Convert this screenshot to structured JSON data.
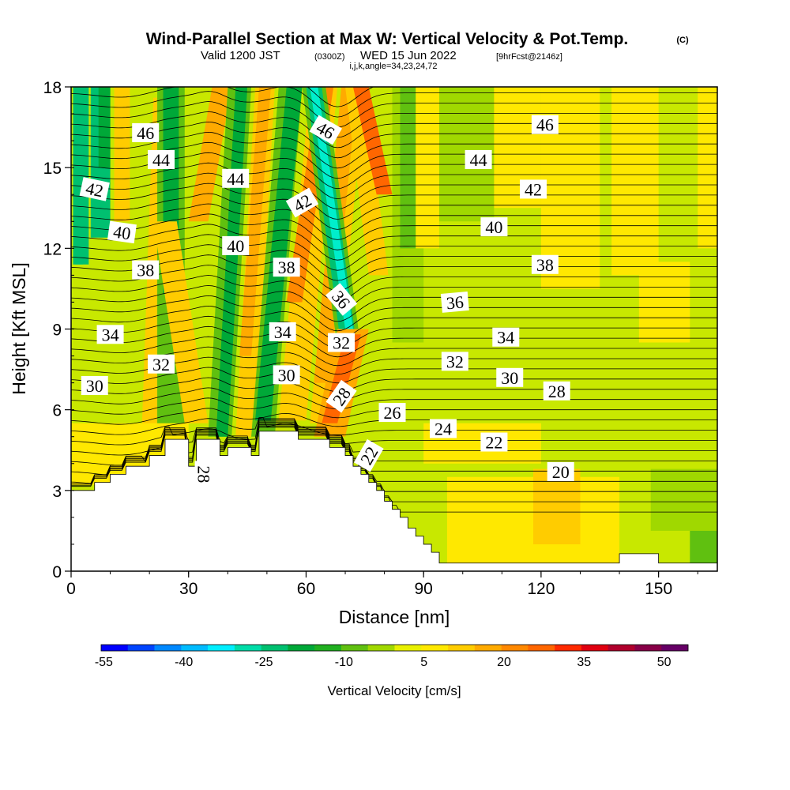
{
  "header": {
    "title": "Wind-Parallel Section at Max W: Vertical Velocity & Pot.Temp.",
    "copyright": "(C)",
    "valid_prefix": "Valid 1200 JST",
    "valid_utc": "(0300Z)",
    "valid_date": "WED 15 Jun 2022",
    "forecast": "[9hrFcst@2146z]",
    "indices": "i,j,k,angle=34,23,24,72"
  },
  "chart_data": {
    "type": "heatmap",
    "xlabel": "Distance [nm]",
    "ylabel": "Height [Kft MSL]",
    "xlim": [
      0,
      165
    ],
    "ylim": [
      0,
      18
    ],
    "x_ticks": [
      0,
      30,
      60,
      90,
      120,
      150
    ],
    "y_ticks": [
      0,
      3,
      6,
      9,
      12,
      15,
      18
    ],
    "terrain_kft": [
      [
        0,
        3.0
      ],
      [
        6,
        3.0
      ],
      [
        6,
        3.3
      ],
      [
        10,
        3.3
      ],
      [
        10,
        3.6
      ],
      [
        14,
        3.6
      ],
      [
        14,
        3.9
      ],
      [
        20,
        3.9
      ],
      [
        20,
        4.3
      ],
      [
        24,
        4.3
      ],
      [
        24,
        4.9
      ],
      [
        30,
        4.9
      ],
      [
        30,
        3.9
      ],
      [
        32,
        3.9
      ],
      [
        32,
        4.9
      ],
      [
        38,
        4.9
      ],
      [
        38,
        4.3
      ],
      [
        40,
        4.3
      ],
      [
        40,
        4.6
      ],
      [
        46,
        4.6
      ],
      [
        46,
        4.3
      ],
      [
        48,
        4.3
      ],
      [
        48,
        5.2
      ],
      [
        58,
        5.2
      ],
      [
        58,
        4.9
      ],
      [
        66,
        4.9
      ],
      [
        66,
        4.6
      ],
      [
        70,
        4.6
      ],
      [
        70,
        4.3
      ],
      [
        72,
        4.3
      ],
      [
        72,
        3.9
      ],
      [
        74,
        3.9
      ],
      [
        74,
        3.6
      ],
      [
        76,
        3.6
      ],
      [
        76,
        3.3
      ],
      [
        78,
        3.3
      ],
      [
        78,
        3.0
      ],
      [
        80,
        3.0
      ],
      [
        80,
        2.6
      ],
      [
        82,
        2.6
      ],
      [
        82,
        2.3
      ],
      [
        84,
        2.3
      ],
      [
        84,
        2.0
      ],
      [
        86,
        2.0
      ],
      [
        86,
        1.6
      ],
      [
        88,
        1.6
      ],
      [
        88,
        1.3
      ],
      [
        90,
        1.3
      ],
      [
        90,
        1.0
      ],
      [
        92,
        1.0
      ],
      [
        92,
        0.7
      ],
      [
        94,
        0.7
      ],
      [
        94,
        0.3
      ],
      [
        140,
        0.3
      ],
      [
        140,
        0.65
      ],
      [
        150,
        0.65
      ],
      [
        150,
        0.3
      ],
      [
        165,
        0.3
      ]
    ],
    "theta_levels_C": [
      20,
      22,
      24,
      26,
      28,
      30,
      32,
      34,
      36,
      38,
      40,
      42,
      44,
      46
    ],
    "theta_labels": [
      {
        "text": "46",
        "x": 19,
        "y": 16.3,
        "rot": 0
      },
      {
        "text": "44",
        "x": 23,
        "y": 15.3,
        "rot": 0
      },
      {
        "text": "42",
        "x": 6,
        "y": 14.2,
        "rot": 12
      },
      {
        "text": "40",
        "x": 13,
        "y": 12.6,
        "rot": 8
      },
      {
        "text": "38",
        "x": 19,
        "y": 11.2,
        "rot": 0
      },
      {
        "text": "34",
        "x": 10,
        "y": 8.8,
        "rot": 0
      },
      {
        "text": "32",
        "x": 23,
        "y": 7.7,
        "rot": 0
      },
      {
        "text": "30",
        "x": 6,
        "y": 6.9,
        "rot": 0
      },
      {
        "text": "44",
        "x": 42,
        "y": 14.6,
        "rot": 0
      },
      {
        "text": "40",
        "x": 42,
        "y": 12.1,
        "rot": 0
      },
      {
        "text": "38",
        "x": 55,
        "y": 11.3,
        "rot": 0
      },
      {
        "text": "34",
        "x": 54,
        "y": 8.9,
        "rot": 0
      },
      {
        "text": "30",
        "x": 55,
        "y": 7.3,
        "rot": 0
      },
      {
        "text": "28",
        "x": 34,
        "y": 3.6,
        "rot": 90
      },
      {
        "text": "46",
        "x": 65,
        "y": 16.4,
        "rot": 30
      },
      {
        "text": "42",
        "x": 59,
        "y": 13.7,
        "rot": -30
      },
      {
        "text": "36",
        "x": 69,
        "y": 10.1,
        "rot": 50
      },
      {
        "text": "32",
        "x": 69,
        "y": 8.5,
        "rot": 0
      },
      {
        "text": "28",
        "x": 69,
        "y": 6.5,
        "rot": -55
      },
      {
        "text": "22",
        "x": 76,
        "y": 4.3,
        "rot": -60
      },
      {
        "text": "26",
        "x": 82,
        "y": 5.9,
        "rot": 0
      },
      {
        "text": "24",
        "x": 95,
        "y": 5.3,
        "rot": 0
      },
      {
        "text": "22",
        "x": 108,
        "y": 4.8,
        "rot": 0
      },
      {
        "text": "20",
        "x": 125,
        "y": 3.7,
        "rot": 0
      },
      {
        "text": "28",
        "x": 124,
        "y": 6.7,
        "rot": 0
      },
      {
        "text": "30",
        "x": 112,
        "y": 7.2,
        "rot": 0
      },
      {
        "text": "32",
        "x": 98,
        "y": 7.8,
        "rot": 0
      },
      {
        "text": "34",
        "x": 111,
        "y": 8.7,
        "rot": 0
      },
      {
        "text": "36",
        "x": 98,
        "y": 10.0,
        "rot": -5
      },
      {
        "text": "38",
        "x": 121,
        "y": 11.4,
        "rot": 0
      },
      {
        "text": "40",
        "x": 108,
        "y": 12.8,
        "rot": 0
      },
      {
        "text": "42",
        "x": 118,
        "y": 14.2,
        "rot": 0
      },
      {
        "text": "44",
        "x": 104,
        "y": 15.3,
        "rot": 0
      },
      {
        "text": "46",
        "x": 121,
        "y": 16.6,
        "rot": 0
      }
    ],
    "colorbar": {
      "title": "Vertical Velocity [cm/s]",
      "tick_labels": [
        "-55",
        "-40",
        "-25",
        "-10",
        "5",
        "20",
        "35",
        "50"
      ],
      "colors": [
        "#0000ff",
        "#0044ff",
        "#0088ff",
        "#00bbff",
        "#00eeff",
        "#00dca8",
        "#00c070",
        "#00a838",
        "#20b020",
        "#60c010",
        "#a0d800",
        "#e8f000",
        "#ffe800",
        "#ffcc00",
        "#ffaa00",
        "#ff8800",
        "#ff6600",
        "#ff2a00",
        "#e00010",
        "#b0002c",
        "#880048",
        "#660066"
      ]
    },
    "bands": [
      {
        "x0": 1,
        "x1": 3,
        "lean": 0,
        "ybot": 11.4,
        "ytop": 18,
        "color": "#00eecc"
      },
      {
        "x0": 0.5,
        "x1": 4.5,
        "lean": 0,
        "ybot": 11.4,
        "ytop": 18,
        "color": "#00c070"
      },
      {
        "x0": 5,
        "x1": 10,
        "lean": 0,
        "ybot": 12.4,
        "ytop": 18,
        "color": "#00c070"
      },
      {
        "x0": 7,
        "x1": 10,
        "lean": 0,
        "ybot": 15.0,
        "ytop": 18,
        "color": "#00a838"
      },
      {
        "x0": 11,
        "x1": 15,
        "lean": 0,
        "ybot": 13.0,
        "ytop": 18,
        "color": "#ffcc00"
      },
      {
        "x0": 18,
        "x1": 23,
        "lean": 3,
        "ybot": 5.0,
        "ytop": 17.6,
        "color": "#ffcc00"
      },
      {
        "x0": 22,
        "x1": 29,
        "lean": 0,
        "ybot": 5.0,
        "ytop": 18,
        "color": "#60c010"
      },
      {
        "x0": 23.5,
        "x1": 27.5,
        "lean": 0,
        "ybot": 10.3,
        "ytop": 18,
        "color": "#00a838"
      },
      {
        "x0": 29,
        "x1": 35,
        "lean": -8,
        "ybot": 5.5,
        "ytop": 13.0,
        "color": "#ffcc00"
      },
      {
        "x0": 30,
        "x1": 35,
        "lean": 6,
        "ybot": 13.0,
        "ytop": 18,
        "color": "#ffaa00"
      },
      {
        "x0": 35,
        "x1": 41,
        "lean": 5,
        "ybot": 5.0,
        "ytop": 18,
        "color": "#60c010"
      },
      {
        "x0": 37,
        "x1": 40,
        "lean": 5,
        "ybot": 5.0,
        "ytop": 18,
        "color": "#00a838"
      },
      {
        "x0": 42,
        "x1": 47,
        "lean": 5,
        "ybot": 5.0,
        "ytop": 18,
        "color": "#ffcc00"
      },
      {
        "x0": 43,
        "x1": 46,
        "lean": 5,
        "ybot": 8.0,
        "ytop": 18,
        "color": "#ffaa00"
      },
      {
        "x0": 46,
        "x1": 52,
        "lean": 7,
        "ybot": 5.0,
        "ytop": 18,
        "color": "#60c010"
      },
      {
        "x0": 47,
        "x1": 51,
        "lean": 8,
        "ybot": 5.6,
        "ytop": 18,
        "color": "#00a838"
      },
      {
        "x0": 53,
        "x1": 60,
        "lean": 8,
        "ybot": 5.6,
        "ytop": 18,
        "color": "#ffcc00"
      },
      {
        "x0": 55,
        "x1": 59,
        "lean": 8,
        "ybot": 10.0,
        "ytop": 18,
        "color": "#ff8800"
      },
      {
        "x0": 61,
        "x1": 67,
        "lean": 8,
        "ybot": 5.5,
        "ytop": 18,
        "color": "#ffcc00"
      },
      {
        "x0": 62,
        "x1": 66,
        "lean": 7,
        "ybot": 7.0,
        "ytop": 18,
        "color": "#ffaa00"
      },
      {
        "x0": 68,
        "x1": 74,
        "lean": -9,
        "ybot": 8.3,
        "ytop": 18,
        "color": "#60c010"
      },
      {
        "x0": 69,
        "x1": 73,
        "lean": -9,
        "ybot": 8.3,
        "ytop": 18,
        "color": "#00c070"
      },
      {
        "x0": 70,
        "x1": 72,
        "lean": -9,
        "ybot": 9.0,
        "ytop": 18,
        "color": "#00eecc"
      },
      {
        "x0": 62,
        "x1": 70,
        "lean": 6,
        "ybot": 5.0,
        "ytop": 9.0,
        "color": "#ffaa00"
      },
      {
        "x0": 64,
        "x1": 68,
        "lean": 6,
        "ybot": 5.5,
        "ytop": 8.8,
        "color": "#ff6600"
      },
      {
        "x0": 76,
        "x1": 81,
        "lean": -6,
        "ybot": 11.0,
        "ytop": 18,
        "color": "#ffcc00"
      },
      {
        "x0": 78,
        "x1": 82,
        "lean": -6,
        "ybot": 14.0,
        "ytop": 18,
        "color": "#ff6600"
      },
      {
        "x0": 82,
        "x1": 90,
        "lean": 0,
        "ybot": 8.5,
        "ytop": 18,
        "color": "#a0d800"
      },
      {
        "x0": 84,
        "x1": 88,
        "lean": 0,
        "ybot": 12.0,
        "ytop": 18,
        "color": "#60c010"
      },
      {
        "x0": 88,
        "x1": 94,
        "lean": 0,
        "ybot": 12.0,
        "ytop": 18,
        "color": "#ffe800"
      },
      {
        "x0": 94,
        "x1": 108,
        "lean": 0,
        "ybot": 13.0,
        "ytop": 18,
        "color": "#a0d800"
      },
      {
        "x0": 108,
        "x1": 120,
        "lean": 0,
        "ybot": 13.5,
        "ytop": 18,
        "color": "#ffe800"
      },
      {
        "x0": 120,
        "x1": 135,
        "lean": 0,
        "ybot": 10.5,
        "ytop": 18,
        "color": "#ffe800"
      },
      {
        "x0": 138,
        "x1": 150,
        "lean": 0,
        "ybot": 11.0,
        "ytop": 18,
        "color": "#ffe800"
      },
      {
        "x0": 145,
        "x1": 158,
        "lean": 0,
        "ybot": 8.5,
        "ytop": 11.5,
        "color": "#ffe800"
      },
      {
        "x0": 160,
        "x1": 165,
        "lean": 0,
        "ybot": 12.0,
        "ytop": 18,
        "color": "#ffe800"
      },
      {
        "x0": 0,
        "x1": 30,
        "lean": 0,
        "ybot": 3.2,
        "ytop": 5.5,
        "color": "#ffe800"
      },
      {
        "x0": 90,
        "x1": 120,
        "lean": 0,
        "ybot": 4.0,
        "ytop": 5.5,
        "color": "#ffe800"
      },
      {
        "x0": 96,
        "x1": 140,
        "lean": 0,
        "ybot": 0.3,
        "ytop": 3.5,
        "color": "#ffe800"
      },
      {
        "x0": 118,
        "x1": 130,
        "lean": 0,
        "ybot": 1.0,
        "ytop": 3.8,
        "color": "#ffcc00"
      },
      {
        "x0": 148,
        "x1": 165,
        "lean": 0,
        "ybot": 1.5,
        "ytop": 3.8,
        "color": "#a0d800"
      },
      {
        "x0": 158,
        "x1": 165,
        "lean": 0,
        "ybot": 0.3,
        "ytop": 1.5,
        "color": "#60c010"
      }
    ]
  }
}
